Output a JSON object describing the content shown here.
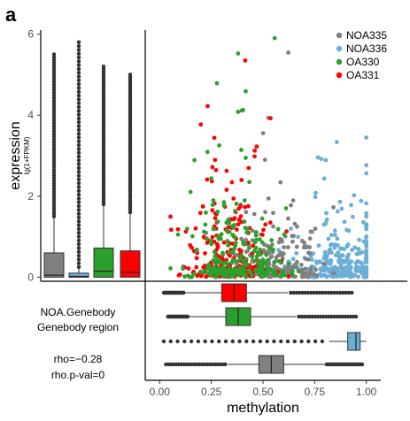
{
  "panel_label": "a",
  "colors": {
    "NOA335": "#808080",
    "NOA336": "#6baed6",
    "OA330": "#2ca02c",
    "OA331": "#ff0000",
    "axis": "#000000",
    "outlier": "#333333"
  },
  "info": {
    "line1": "NOA.Genebody",
    "line2": "Genebody region",
    "rho": "rho=−0.28",
    "pval": "rho.p-val=0"
  },
  "chart_data": [
    {
      "type": "scatter",
      "xlabel": "methylation",
      "ylabel": "expression",
      "ylabel_sub": "lg(1+FPKM)",
      "xlim": [
        -0.07,
        1.07
      ],
      "ylim": [
        -0.1,
        6.1
      ],
      "xticks": [
        0.0,
        0.25,
        0.5,
        0.75,
        1.0
      ],
      "xtick_labels": [
        "0.00",
        "0.25",
        "0.50",
        "0.75",
        "1.00"
      ],
      "yticks": [
        0,
        2,
        4,
        6
      ],
      "ytick_labels": [
        "0",
        "2",
        "4",
        "6"
      ],
      "legend_position": "top-right",
      "grid": false,
      "draw_order": [
        "NOA336",
        "NOA335",
        "OA331",
        "OA330"
      ],
      "series": [
        {
          "name": "NOA335",
          "center": [
            0.55,
            0.8
          ],
          "spread": [
            0.12,
            0.7
          ]
        },
        {
          "name": "NOA336",
          "center": [
            0.9,
            0.6
          ],
          "spread": [
            0.12,
            0.6
          ]
        },
        {
          "name": "OA330",
          "center": [
            0.38,
            1.0
          ],
          "spread": [
            0.12,
            0.9
          ]
        },
        {
          "name": "OA331",
          "center": [
            0.33,
            1.0
          ],
          "spread": [
            0.1,
            0.9
          ]
        }
      ]
    },
    {
      "type": "boxplot",
      "orientation": "vertical",
      "value_axis": "expression",
      "series": [
        {
          "name": "NOA335",
          "q1": 0.0,
          "median": 0.05,
          "q3": 0.6,
          "whisker_low": 0.0,
          "whisker_high": 1.5,
          "outlier_max": 5.5
        },
        {
          "name": "NOA336",
          "q1": 0.0,
          "median": 0.02,
          "q3": 0.1,
          "whisker_low": 0.0,
          "whisker_high": 0.25,
          "outlier_max": 5.8
        },
        {
          "name": "OA330",
          "q1": 0.0,
          "median": 0.15,
          "q3": 0.72,
          "whisker_low": 0.0,
          "whisker_high": 1.8,
          "outlier_max": 5.2
        },
        {
          "name": "OA331",
          "q1": 0.0,
          "median": 0.12,
          "q3": 0.65,
          "whisker_low": 0.0,
          "whisker_high": 1.6,
          "outlier_max": 5.0
        }
      ]
    },
    {
      "type": "boxplot",
      "orientation": "horizontal",
      "value_axis": "methylation",
      "series": [
        {
          "name": "OA331",
          "q1": 0.3,
          "median": 0.36,
          "q3": 0.42,
          "whisker_low": 0.12,
          "whisker_high": 0.62,
          "outlier_min": 0.02,
          "outlier_max": 0.93
        },
        {
          "name": "OA330",
          "q1": 0.32,
          "median": 0.38,
          "q3": 0.44,
          "whisker_low": 0.14,
          "whisker_high": 0.66,
          "outlier_min": 0.04,
          "outlier_max": 0.95
        },
        {
          "name": "NOA336",
          "q1": 0.91,
          "median": 0.95,
          "q3": 0.97,
          "whisker_low": 0.82,
          "whisker_high": 1.0,
          "outlier_min": 0.02,
          "outlier_max": 0.8
        },
        {
          "name": "NOA335",
          "q1": 0.48,
          "median": 0.54,
          "q3": 0.6,
          "whisker_low": 0.33,
          "whisker_high": 0.8,
          "outlier_min": 0.03,
          "outlier_max": 0.98
        }
      ]
    }
  ]
}
